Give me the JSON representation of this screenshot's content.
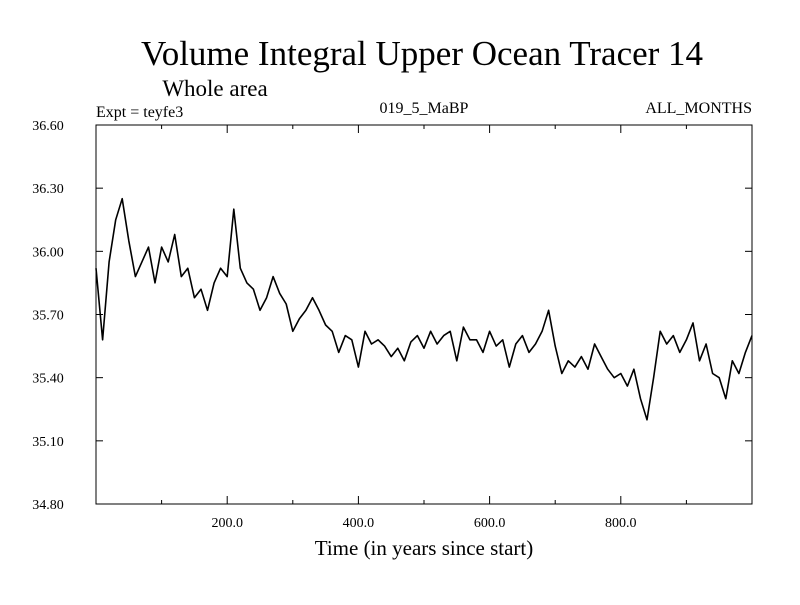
{
  "chart_data": {
    "type": "line",
    "title": "Volume Integral Upper Ocean Tracer 14",
    "subtitle": "Whole area",
    "left_label": "Expt = teyfe3",
    "center_label": "019_5_MaBP",
    "right_label": "ALL_MONTHS",
    "xlabel": "Time (in years since start)",
    "ylabel": "",
    "xlim": [
      0,
      1000
    ],
    "ylim": [
      34.8,
      36.6
    ],
    "x_ticks": [
      200,
      400,
      600,
      800
    ],
    "x_tick_labels": [
      "200.0",
      "400.0",
      "600.0",
      "800.0"
    ],
    "y_ticks": [
      34.8,
      35.1,
      35.4,
      35.7,
      36.0,
      36.3,
      36.6
    ],
    "y_tick_labels": [
      "34.80",
      "35.10",
      "35.40",
      "35.70",
      "36.00",
      "36.30",
      "36.60"
    ],
    "grid": false,
    "line_color": "#000000",
    "series": [
      {
        "name": "Volume Integral Upper Ocean Tracer 14",
        "x": [
          0,
          10,
          20,
          30,
          40,
          50,
          60,
          70,
          80,
          90,
          100,
          110,
          120,
          130,
          140,
          150,
          160,
          170,
          180,
          190,
          200,
          210,
          220,
          230,
          240,
          250,
          260,
          270,
          280,
          290,
          300,
          310,
          320,
          330,
          340,
          350,
          360,
          370,
          380,
          390,
          400,
          410,
          420,
          430,
          440,
          450,
          460,
          470,
          480,
          490,
          500,
          510,
          520,
          530,
          540,
          550,
          560,
          570,
          580,
          590,
          600,
          610,
          620,
          630,
          640,
          650,
          660,
          670,
          680,
          690,
          700,
          710,
          720,
          730,
          740,
          750,
          760,
          770,
          780,
          790,
          800,
          810,
          820,
          830,
          840,
          850,
          860,
          870,
          880,
          890,
          900,
          910,
          920,
          930,
          940,
          950,
          960,
          970,
          980,
          990,
          1000
        ],
        "values": [
          35.92,
          35.58,
          35.95,
          36.15,
          36.25,
          36.05,
          35.88,
          35.95,
          36.02,
          35.85,
          36.02,
          35.95,
          36.08,
          35.88,
          35.92,
          35.78,
          35.82,
          35.72,
          35.85,
          35.92,
          35.88,
          36.2,
          35.92,
          35.85,
          35.82,
          35.72,
          35.78,
          35.88,
          35.8,
          35.75,
          35.62,
          35.68,
          35.72,
          35.78,
          35.72,
          35.65,
          35.62,
          35.52,
          35.6,
          35.58,
          35.45,
          35.62,
          35.56,
          35.58,
          35.55,
          35.5,
          35.54,
          35.48,
          35.57,
          35.6,
          35.54,
          35.62,
          35.56,
          35.6,
          35.62,
          35.48,
          35.64,
          35.58,
          35.58,
          35.52,
          35.62,
          35.55,
          35.58,
          35.45,
          35.56,
          35.6,
          35.52,
          35.56,
          35.62,
          35.72,
          35.55,
          35.42,
          35.48,
          35.45,
          35.5,
          35.44,
          35.56,
          35.5,
          35.44,
          35.4,
          35.42,
          35.36,
          35.44,
          35.3,
          35.2,
          35.4,
          35.62,
          35.56,
          35.6,
          35.52,
          35.58,
          35.66,
          35.48,
          35.56,
          35.42,
          35.4,
          35.3,
          35.48,
          35.42,
          35.52,
          35.6
        ]
      }
    ]
  }
}
